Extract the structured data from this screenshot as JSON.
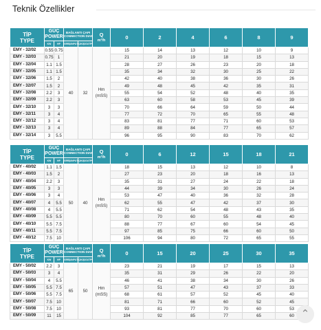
{
  "page": {
    "title": "Teknik Özellikler"
  },
  "header": {
    "tip": "TİP",
    "type": "TYPE",
    "guc": "GÜÇ",
    "power": "POWER",
    "kw": "KW",
    "hp": "HP",
    "baglanti": "BAĞLANTI ÇAPI",
    "connection": "CONNECTION DIAMETER",
    "giris": "GİRİŞ/INPUT",
    "cikis": "ÇIKIŞ/OUTPUT",
    "q": "Q",
    "q_unit": "m³/h",
    "hm": "Hm",
    "mss": "(mSS)"
  },
  "tables": [
    {
      "flows": [
        "0",
        "2",
        "4",
        "6",
        "8",
        "9"
      ],
      "giris": "40",
      "cikis": "32",
      "rows": [
        {
          "model": "EMY - 32/02",
          "kw": "0.55",
          "hp": "0.75",
          "v": [
            "15",
            "14",
            "13",
            "12",
            "10",
            "9"
          ]
        },
        {
          "model": "EMY - 32/03",
          "kw": "0.75",
          "hp": "1",
          "v": [
            "21",
            "20",
            "19",
            "18",
            "15",
            "13"
          ]
        },
        {
          "model": "EMY - 32/04",
          "kw": "1.1",
          "hp": "1.5",
          "v": [
            "28",
            "27",
            "26",
            "23",
            "20",
            "18"
          ]
        },
        {
          "model": "EMY - 32/05",
          "kw": "1.1",
          "hp": "1.5",
          "v": [
            "35",
            "34",
            "32",
            "30",
            "25",
            "22"
          ]
        },
        {
          "model": "EMY - 32/06",
          "kw": "1.5",
          "hp": "2",
          "v": [
            "42",
            "40",
            "38",
            "36",
            "30",
            "26"
          ]
        },
        {
          "model": "EMY - 32/07",
          "kw": "1.5",
          "hp": "2",
          "v": [
            "49",
            "48",
            "45",
            "42",
            "35",
            "31"
          ]
        },
        {
          "model": "EMY - 32/08",
          "kw": "2.2",
          "hp": "3",
          "v": [
            "55",
            "54",
            "52",
            "48",
            "40",
            "35"
          ]
        },
        {
          "model": "EMY - 32/09",
          "kw": "2.2",
          "hp": "3",
          "v": [
            "63",
            "60",
            "58",
            "53",
            "45",
            "39"
          ]
        },
        {
          "model": "EMY - 32/10",
          "kw": "3",
          "hp": "3",
          "v": [
            "70",
            "66",
            "64",
            "59",
            "50",
            "44"
          ]
        },
        {
          "model": "EMY - 32/11",
          "kw": "3",
          "hp": "4",
          "v": [
            "77",
            "72",
            "70",
            "65",
            "55",
            "48"
          ]
        },
        {
          "model": "EMY - 32/12",
          "kw": "3",
          "hp": "4",
          "v": [
            "83",
            "81",
            "77",
            "71",
            "60",
            "53"
          ]
        },
        {
          "model": "EMY - 32/13",
          "kw": "3",
          "hp": "4",
          "v": [
            "89",
            "88",
            "84",
            "77",
            "65",
            "57"
          ]
        },
        {
          "model": "EMY - 32/14",
          "kw": "3",
          "hp": "5.5",
          "v": [
            "96",
            "95",
            "90",
            "83",
            "70",
            "62"
          ]
        }
      ]
    },
    {
      "flows": [
        "0",
        "6",
        "12",
        "15",
        "18",
        "21"
      ],
      "giris": "50",
      "cikis": "40",
      "rows": [
        {
          "model": "EMY - 40/02",
          "kw": "1.1",
          "hp": "1.5",
          "v": [
            "18",
            "15",
            "13",
            "12",
            "10",
            "8"
          ]
        },
        {
          "model": "EMY - 40/03",
          "kw": "1.5",
          "hp": "2",
          "v": [
            "27",
            "23",
            "20",
            "18",
            "16",
            "13"
          ]
        },
        {
          "model": "EMY - 40/04",
          "kw": "2.2",
          "hp": "3",
          "v": [
            "35",
            "31",
            "27",
            "24",
            "22",
            "18"
          ]
        },
        {
          "model": "EMY - 40/05",
          "kw": "3",
          "hp": "3",
          "v": [
            "44",
            "39",
            "34",
            "30",
            "26",
            "24"
          ]
        },
        {
          "model": "EMY - 40/06",
          "kw": "3",
          "hp": "4",
          "v": [
            "53",
            "47",
            "40",
            "36",
            "32",
            "28"
          ]
        },
        {
          "model": "EMY - 40/07",
          "kw": "4",
          "hp": "5.5",
          "v": [
            "62",
            "55",
            "47",
            "42",
            "37",
            "30"
          ]
        },
        {
          "model": "EMY - 40/08",
          "kw": "4",
          "hp": "5.5",
          "v": [
            "71",
            "62",
            "54",
            "48",
            "43",
            "35"
          ]
        },
        {
          "model": "EMY - 40/09",
          "kw": "5.5",
          "hp": "5.5",
          "v": [
            "80",
            "70",
            "60",
            "55",
            "48",
            "40"
          ]
        },
        {
          "model": "EMY - 40/10",
          "kw": "5.5",
          "hp": "7.5",
          "v": [
            "88",
            "77",
            "67",
            "60",
            "54",
            "45"
          ]
        },
        {
          "model": "EMY - 40/11",
          "kw": "5.5",
          "hp": "7.5",
          "v": [
            "97",
            "85",
            "75",
            "66",
            "60",
            "50"
          ]
        },
        {
          "model": "EMY - 40/12",
          "kw": "7.5",
          "hp": "10",
          "v": [
            "106",
            "94",
            "80",
            "72",
            "65",
            "55"
          ]
        }
      ]
    },
    {
      "flows": [
        "0",
        "15",
        "20",
        "25",
        "30",
        "35"
      ],
      "giris": "65",
      "cikis": "50",
      "rows": [
        {
          "model": "EMY - 50/02",
          "kw": "2.2",
          "hp": "3",
          "v": [
            "23",
            "21",
            "19",
            "17",
            "15",
            "13"
          ]
        },
        {
          "model": "EMY - 50/03",
          "kw": "3",
          "hp": "4",
          "v": [
            "35",
            "31",
            "29",
            "26",
            "22",
            "20"
          ]
        },
        {
          "model": "EMY - 50/04",
          "kw": "4",
          "hp": "5.5",
          "v": [
            "46",
            "41",
            "38",
            "34",
            "30",
            "26"
          ]
        },
        {
          "model": "EMY - 50/05",
          "kw": "5.5",
          "hp": "7.5",
          "v": [
            "57",
            "51",
            "47",
            "43",
            "37",
            "33"
          ]
        },
        {
          "model": "EMY - 50/06",
          "kw": "5.5",
          "hp": "7.5",
          "v": [
            "68",
            "61",
            "57",
            "52",
            "45",
            "40"
          ]
        },
        {
          "model": "EMY - 50/07",
          "kw": "7.5",
          "hp": "10",
          "v": [
            "81",
            "71",
            "66",
            "60",
            "52",
            "45"
          ]
        },
        {
          "model": "EMY - 50/08",
          "kw": "7.5",
          "hp": "10",
          "v": [
            "93",
            "81",
            "77",
            "70",
            "60",
            "53"
          ]
        },
        {
          "model": "EMY - 50/09",
          "kw": "11",
          "hp": "15",
          "v": [
            "104",
            "92",
            "85",
            "77",
            "65",
            "60"
          ]
        }
      ]
    }
  ],
  "icons": {
    "scroll_top": "chevron-up-icon",
    "scroll_top_glyph": "⌃"
  }
}
